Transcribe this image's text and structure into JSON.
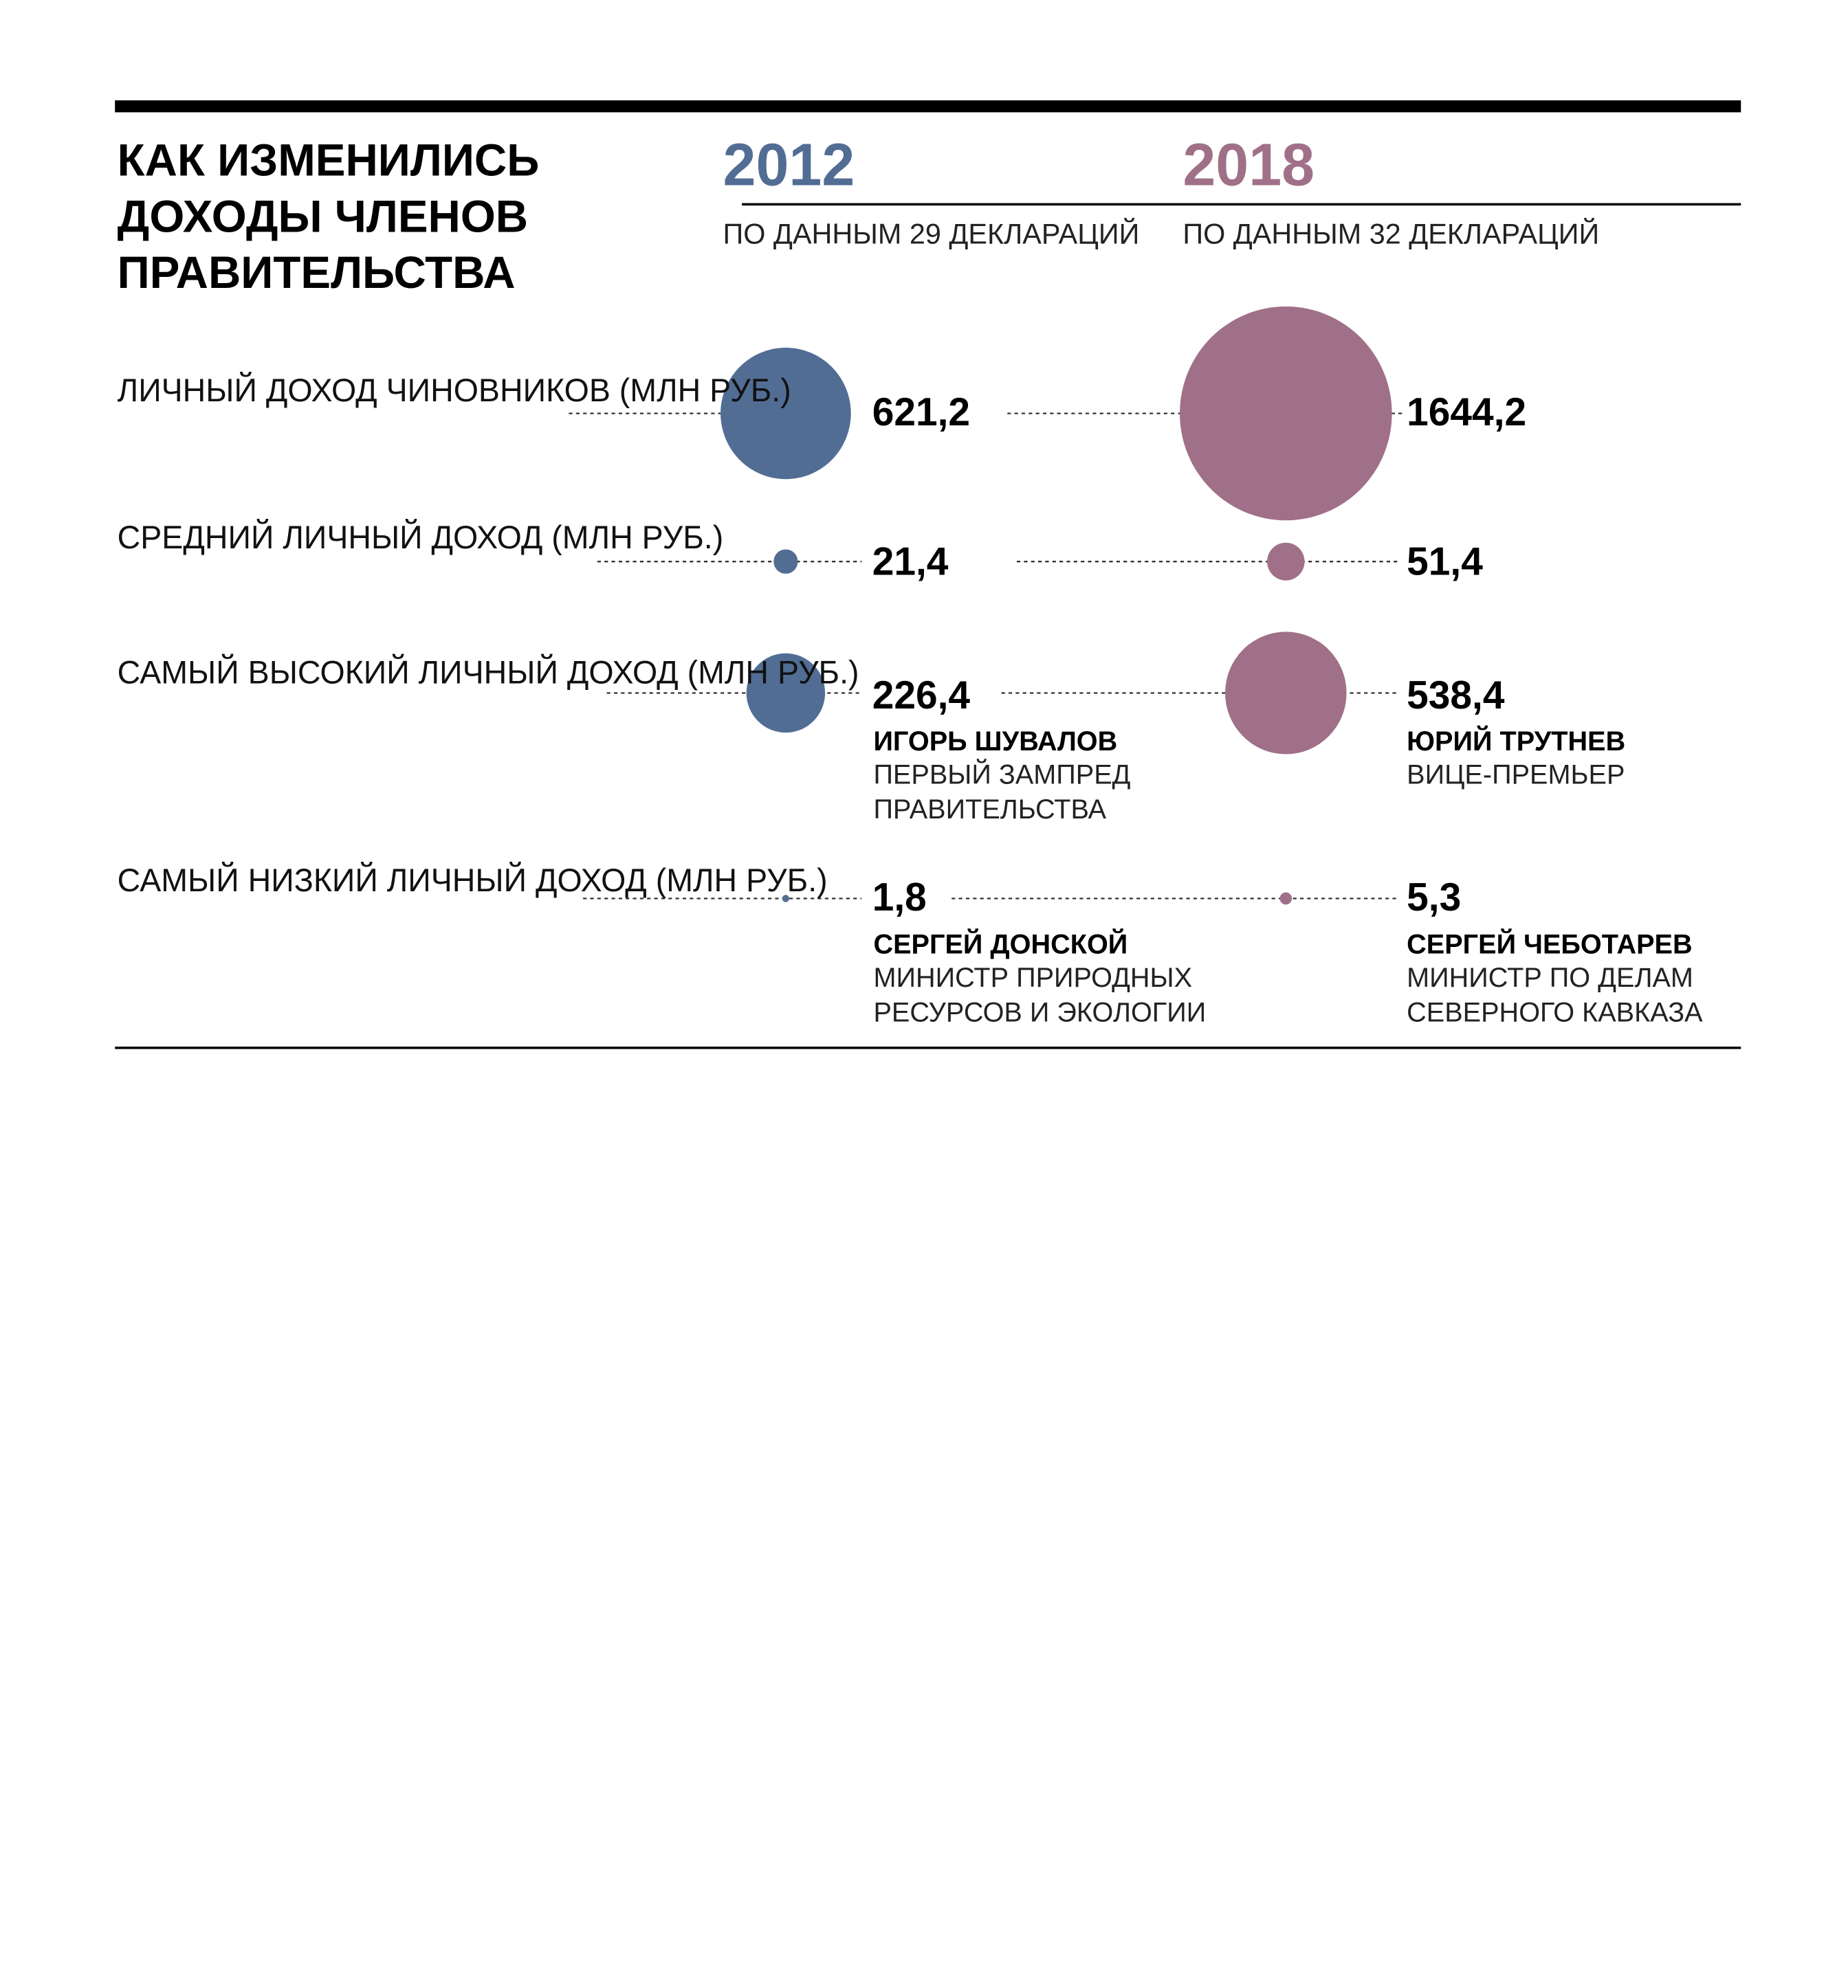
{
  "title": "КАК ИЗМЕНИЛИСЬ ДОХОДЫ ЧЛЕНОВ ПРАВИТЕЛЬСТВА",
  "colors": {
    "y2012": "#526d94",
    "y2018": "#a07088",
    "rule": "#000000"
  },
  "years": [
    {
      "label": "2012",
      "source": "ПО ДАННЫМ 29 ДЕКЛАРАЦИЙ"
    },
    {
      "label": "2018",
      "source": "ПО ДАННЫМ 32 ДЕКЛАРАЦИЙ"
    }
  ],
  "rows": [
    {
      "label": "ЛИЧНЫЙ ДОХОД ЧИНОВНИКОВ (МЛН РУБ.)",
      "v2012": "621,2",
      "v2018": "1644,2"
    },
    {
      "label": "СРЕДНИЙ ЛИЧНЫЙ ДОХОД (МЛН РУБ.)",
      "v2012": "21,4",
      "v2018": "51,4"
    },
    {
      "label": "САМЫЙ ВЫСОКИЙ ЛИЧНЫЙ ДОХОД (МЛН РУБ.)",
      "v2012": "226,4",
      "v2018": "538,4",
      "p2012": {
        "name": "ИГОРЬ ШУВАЛОВ",
        "role": "ПЕРВЫЙ ЗАМПРЕД ПРАВИТЕЛЬСТВА"
      },
      "p2018": {
        "name": "ЮРИЙ ТРУТНЕВ",
        "role": "ВИЦЕ-ПРЕМЬЕР"
      }
    },
    {
      "label": "САМЫЙ НИЗКИЙ ЛИЧНЫЙ ДОХОД (МЛН РУБ.)",
      "v2012": "1,8",
      "v2018": "5,3",
      "p2012": {
        "name": "СЕРГЕЙ ДОНСКОЙ",
        "role": "МИНИСТР ПРИРОДНЫХ РЕСУРСОВ И ЭКОЛОГИИ"
      },
      "p2018": {
        "name": "СЕРГЕЙ ЧЕБОТАРЕВ",
        "role": "МИНИСТР ПО ДЕЛАМ СЕВЕРНОГО КАВКАЗА"
      }
    }
  ],
  "chart_data": {
    "type": "bubble",
    "title": "КАК ИЗМЕНИЛИСЬ ДОХОДЫ ЧЛЕНОВ ПРАВИТЕЛЬСТВА",
    "categories": [
      "ЛИЧНЫЙ ДОХОД ЧИНОВНИКОВ (МЛН РУБ.)",
      "СРЕДНИЙ ЛИЧНЫЙ ДОХОД (МЛН РУБ.)",
      "САМЫЙ ВЫСОКИЙ ЛИЧНЫЙ ДОХОД (МЛН РУБ.)",
      "САМЫЙ НИЗКИЙ ЛИЧНЫЙ ДОХОД (МЛН РУБ.)"
    ],
    "series": [
      {
        "name": "2012",
        "values": [
          621.2,
          21.4,
          226.4,
          1.8
        ]
      },
      {
        "name": "2018",
        "values": [
          1644.2,
          51.4,
          538.4,
          5.3
        ]
      }
    ]
  }
}
